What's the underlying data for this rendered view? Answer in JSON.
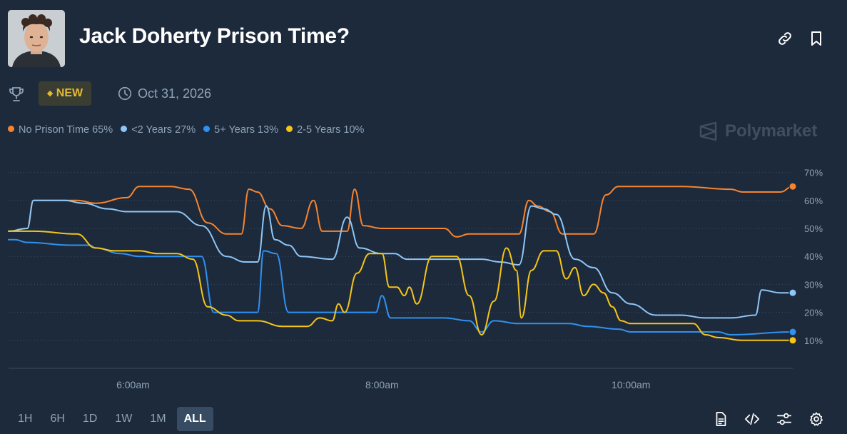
{
  "market": {
    "title": "Jack Doherty Prison Time?",
    "badge": "NEW",
    "end_date": "Oct 31, 2026",
    "brand": "Polymarket"
  },
  "icons": {
    "avatar": "avatar-photo",
    "link": "link-icon",
    "bookmark": "bookmark-icon",
    "trophy": "trophy-icon",
    "clock": "clock-icon",
    "brand": "polymarket-logo-icon",
    "document": "document-icon",
    "embed": "code-icon",
    "sliders": "sliders-icon",
    "settings": "gear-icon"
  },
  "legend": [
    {
      "label": "No Prison Time 65%",
      "color": "#f7842f"
    },
    {
      "label": "<2 Years 27%",
      "color": "#8ec6f7"
    },
    {
      "label": "5+ Years 13%",
      "color": "#2f91f1"
    },
    {
      "label": "2-5 Years 10%",
      "color": "#f5c518"
    }
  ],
  "time_ranges": [
    "1H",
    "6H",
    "1D",
    "1W",
    "1M",
    "ALL"
  ],
  "active_range": "ALL",
  "chart_data": {
    "type": "line",
    "title": "Jack Doherty Prison Time?",
    "xlabel": "",
    "ylabel": "",
    "x_ticks": [
      "6:00am",
      "8:00am",
      "10:00am"
    ],
    "y_ticks": [
      "10%",
      "20%",
      "30%",
      "40%",
      "50%",
      "60%",
      "70%"
    ],
    "ylim": [
      0,
      70
    ],
    "x_range_hours": [
      5.0,
      11.3
    ],
    "grid": true,
    "series": [
      {
        "name": "No Prison Time",
        "color": "#f7842f",
        "end_value": 65,
        "points": [
          [
            5.0,
            49
          ],
          [
            5.15,
            50
          ],
          [
            5.2,
            60
          ],
          [
            5.55,
            60
          ],
          [
            5.7,
            59
          ],
          [
            5.95,
            61
          ],
          [
            6.05,
            65
          ],
          [
            6.3,
            65
          ],
          [
            6.45,
            64
          ],
          [
            6.6,
            52
          ],
          [
            6.75,
            48
          ],
          [
            6.87,
            48
          ],
          [
            6.93,
            64
          ],
          [
            7.0,
            63
          ],
          [
            7.1,
            57
          ],
          [
            7.2,
            51
          ],
          [
            7.35,
            50
          ],
          [
            7.45,
            60
          ],
          [
            7.52,
            49
          ],
          [
            7.72,
            49
          ],
          [
            7.78,
            64
          ],
          [
            7.85,
            51
          ],
          [
            8.0,
            50
          ],
          [
            8.5,
            50
          ],
          [
            8.6,
            47
          ],
          [
            8.7,
            48
          ],
          [
            9.1,
            48
          ],
          [
            9.18,
            60
          ],
          [
            9.25,
            58
          ],
          [
            9.35,
            56
          ],
          [
            9.45,
            48
          ],
          [
            9.7,
            48
          ],
          [
            9.8,
            62
          ],
          [
            9.9,
            65
          ],
          [
            10.2,
            65
          ],
          [
            10.4,
            65
          ],
          [
            10.8,
            64
          ],
          [
            10.9,
            63
          ],
          [
            11.2,
            63
          ],
          [
            11.3,
            65
          ]
        ]
      },
      {
        "name": "<2 Years",
        "color": "#8ec6f7",
        "end_value": 27,
        "points": [
          [
            5.0,
            49
          ],
          [
            5.15,
            50
          ],
          [
            5.2,
            60
          ],
          [
            5.45,
            60
          ],
          [
            5.6,
            59
          ],
          [
            5.8,
            57
          ],
          [
            5.95,
            56
          ],
          [
            6.35,
            56
          ],
          [
            6.55,
            51
          ],
          [
            6.75,
            40
          ],
          [
            6.9,
            38
          ],
          [
            7.0,
            38
          ],
          [
            7.07,
            58
          ],
          [
            7.14,
            46
          ],
          [
            7.25,
            44
          ],
          [
            7.35,
            40
          ],
          [
            7.6,
            39
          ],
          [
            7.72,
            54
          ],
          [
            7.82,
            43
          ],
          [
            8.0,
            41
          ],
          [
            8.1,
            41
          ],
          [
            8.2,
            39
          ],
          [
            8.5,
            39
          ],
          [
            8.8,
            39
          ],
          [
            8.95,
            38
          ],
          [
            9.1,
            37
          ],
          [
            9.2,
            58
          ],
          [
            9.3,
            57
          ],
          [
            9.4,
            55
          ],
          [
            9.55,
            39
          ],
          [
            9.7,
            36
          ],
          [
            9.85,
            27
          ],
          [
            10.0,
            23
          ],
          [
            10.2,
            19
          ],
          [
            10.4,
            19
          ],
          [
            10.6,
            18
          ],
          [
            10.8,
            18
          ],
          [
            11.0,
            19
          ],
          [
            11.05,
            28
          ],
          [
            11.2,
            27
          ],
          [
            11.3,
            27
          ]
        ]
      },
      {
        "name": "5+ Years",
        "color": "#2f91f1",
        "end_value": 13,
        "points": [
          [
            5.0,
            46
          ],
          [
            5.05,
            46
          ],
          [
            5.15,
            45
          ],
          [
            5.5,
            44
          ],
          [
            5.65,
            44
          ],
          [
            5.7,
            43
          ],
          [
            5.9,
            41
          ],
          [
            6.05,
            40
          ],
          [
            6.4,
            40
          ],
          [
            6.55,
            40
          ],
          [
            6.65,
            20
          ],
          [
            7.0,
            20
          ],
          [
            7.05,
            42
          ],
          [
            7.15,
            41
          ],
          [
            7.25,
            20
          ],
          [
            7.8,
            20
          ],
          [
            7.95,
            20
          ],
          [
            8.0,
            26
          ],
          [
            8.07,
            18
          ],
          [
            8.25,
            18
          ],
          [
            8.5,
            18
          ],
          [
            8.7,
            17
          ],
          [
            8.8,
            13
          ],
          [
            8.9,
            17
          ],
          [
            9.1,
            16
          ],
          [
            9.3,
            16
          ],
          [
            9.5,
            16
          ],
          [
            9.65,
            15
          ],
          [
            9.9,
            14
          ],
          [
            10.0,
            13
          ],
          [
            10.3,
            13
          ],
          [
            10.5,
            13
          ],
          [
            10.7,
            13
          ],
          [
            10.8,
            12
          ],
          [
            11.3,
            13
          ]
        ]
      },
      {
        "name": "2-5 Years",
        "color": "#f5c518",
        "end_value": 10,
        "points": [
          [
            5.0,
            49
          ],
          [
            5.2,
            49
          ],
          [
            5.55,
            48
          ],
          [
            5.7,
            43
          ],
          [
            5.85,
            42
          ],
          [
            6.05,
            42
          ],
          [
            6.2,
            41
          ],
          [
            6.35,
            41
          ],
          [
            6.48,
            39
          ],
          [
            6.6,
            22
          ],
          [
            6.75,
            19
          ],
          [
            6.85,
            17
          ],
          [
            7.0,
            17
          ],
          [
            7.2,
            15
          ],
          [
            7.4,
            15
          ],
          [
            7.5,
            18
          ],
          [
            7.6,
            17
          ],
          [
            7.65,
            23
          ],
          [
            7.7,
            20
          ],
          [
            7.8,
            34
          ],
          [
            7.9,
            41
          ],
          [
            8.0,
            41
          ],
          [
            8.06,
            29
          ],
          [
            8.12,
            29
          ],
          [
            8.18,
            26
          ],
          [
            8.22,
            29
          ],
          [
            8.28,
            23
          ],
          [
            8.4,
            40
          ],
          [
            8.5,
            40
          ],
          [
            8.6,
            40
          ],
          [
            8.7,
            26
          ],
          [
            8.8,
            12
          ],
          [
            8.9,
            24
          ],
          [
            9.0,
            43
          ],
          [
            9.08,
            35
          ],
          [
            9.12,
            18
          ],
          [
            9.2,
            35
          ],
          [
            9.3,
            42
          ],
          [
            9.4,
            42
          ],
          [
            9.48,
            32
          ],
          [
            9.55,
            36
          ],
          [
            9.62,
            26
          ],
          [
            9.7,
            30
          ],
          [
            9.78,
            27
          ],
          [
            9.85,
            22
          ],
          [
            9.92,
            17
          ],
          [
            10.0,
            16
          ],
          [
            10.1,
            16
          ],
          [
            10.3,
            16
          ],
          [
            10.5,
            16
          ],
          [
            10.6,
            12
          ],
          [
            10.7,
            11
          ],
          [
            10.9,
            10
          ],
          [
            11.3,
            10
          ]
        ]
      }
    ]
  }
}
